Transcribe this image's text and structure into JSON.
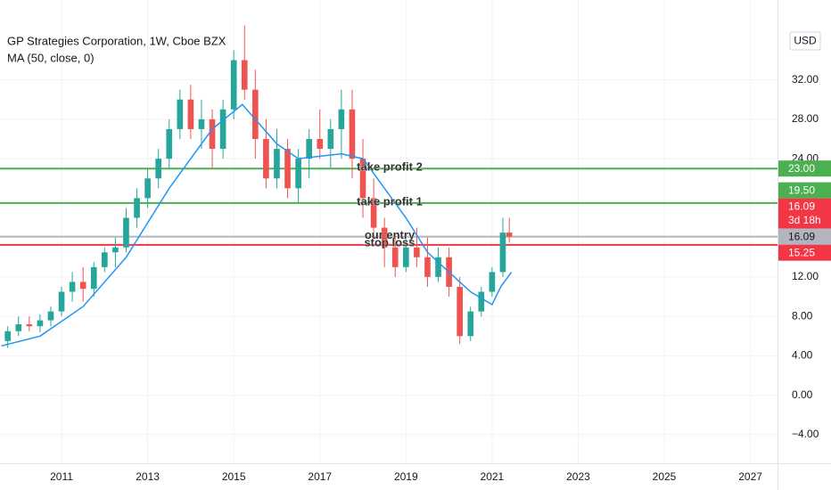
{
  "chart_data": {
    "type": "candlestick",
    "title": "GP Strategies Corporation, 1W, Cboe BZX",
    "indicator": "MA (50, close, 0)",
    "currency": "USD",
    "up_color": "#26a69a",
    "down_color": "#ef5350",
    "grid": true,
    "xlim": [
      2009.57,
      2027.63
    ],
    "xticks": [
      2011,
      2013,
      2015,
      2017,
      2019,
      2021,
      2023,
      2025,
      2027
    ],
    "ylim": [
      -6.9,
      40.1
    ],
    "yticks": [
      {
        "value": -4,
        "label": "−4.00"
      },
      {
        "value": 0,
        "label": "0.00"
      },
      {
        "value": 4,
        "label": "4.00"
      },
      {
        "value": 8,
        "label": "8.00"
      },
      {
        "value": 12,
        "label": "12.00"
      },
      {
        "value": 24,
        "label": "24.00"
      },
      {
        "value": 28,
        "label": "28.00"
      },
      {
        "value": 32,
        "label": "32.00"
      }
    ],
    "x": [
      2009.75,
      2010,
      2010.25,
      2010.5,
      2010.75,
      2011,
      2011.25,
      2011.5,
      2011.75,
      2012,
      2012.25,
      2012.5,
      2012.75,
      2013,
      2013.25,
      2013.5,
      2013.75,
      2014,
      2014.25,
      2014.5,
      2014.75,
      2015,
      2015.25,
      2015.5,
      2015.75,
      2016,
      2016.25,
      2016.5,
      2016.75,
      2017,
      2017.25,
      2017.5,
      2017.75,
      2018,
      2018.25,
      2018.5,
      2018.75,
      2019,
      2019.25,
      2019.5,
      2019.75,
      2020,
      2020.25,
      2020.5,
      2020.75,
      2021,
      2021.25,
      2021.4
    ],
    "open": [
      5.5,
      6.5,
      7.2,
      7,
      7.6,
      8.5,
      10.5,
      11.5,
      10.8,
      13,
      14.5,
      15,
      18,
      20,
      22,
      24,
      27,
      30,
      27,
      28,
      25,
      29,
      34,
      31,
      26,
      22,
      25,
      21,
      24,
      26,
      25,
      27,
      29,
      24,
      20,
      17,
      15,
      13,
      15,
      14,
      12,
      14,
      11,
      6,
      8.5,
      10.5,
      12.5,
      16.5
    ],
    "high": [
      7,
      8,
      8,
      8.2,
      9,
      11,
      12.5,
      13,
      13.5,
      15,
      16,
      19,
      21,
      23,
      25,
      28,
      31,
      31.5,
      30,
      29,
      30,
      35,
      37.5,
      33,
      28,
      27,
      26,
      25,
      27,
      29,
      28,
      31,
      31,
      26,
      22,
      18,
      16.5,
      16,
      17,
      16,
      15,
      15,
      12,
      9,
      11,
      13,
      18,
      18
    ],
    "low": [
      4.8,
      6,
      6.5,
      6.4,
      7,
      8,
      9.5,
      9.5,
      10,
      12.5,
      13,
      14.5,
      17,
      19,
      21,
      23,
      26,
      26,
      25,
      23,
      24,
      28,
      30,
      24,
      21,
      21,
      20,
      19.5,
      22,
      24,
      23,
      24,
      22,
      18,
      16,
      13,
      12,
      12.5,
      13,
      11,
      11.5,
      10,
      5.2,
      5.5,
      8,
      10,
      12,
      15.5
    ],
    "close": [
      6.5,
      7.2,
      7,
      7.6,
      8.5,
      10.5,
      11.5,
      10.8,
      13,
      14.5,
      15,
      18,
      20,
      22,
      24,
      27,
      30,
      27,
      28,
      25,
      29,
      34,
      31,
      26,
      22,
      25,
      21,
      24,
      26,
      25,
      27,
      29,
      24,
      20,
      17,
      15,
      13,
      15,
      14,
      12,
      14,
      11,
      6,
      8.5,
      10.5,
      12.5,
      16.5,
      16.09
    ],
    "ma": {
      "color": "#2196f3",
      "x": [
        2009.6,
        2010.5,
        2011.5,
        2012.5,
        2013.5,
        2014.5,
        2015.2,
        2015.5,
        2016,
        2016.5,
        2017.5,
        2018,
        2018.5,
        2019,
        2019.5,
        2020,
        2020.5,
        2021,
        2021.2,
        2021.45
      ],
      "values": [
        5,
        6,
        9,
        14,
        21,
        27,
        29.5,
        28,
        25.5,
        24,
        24.5,
        24,
        21,
        18,
        14.5,
        12.5,
        10.5,
        9.2,
        11,
        12.5
      ]
    },
    "hlines": [
      {
        "value": 23,
        "label": "take profit 2",
        "color": "#4caf50"
      },
      {
        "value": 19.5,
        "label": "take profit 1",
        "color": "#4caf50"
      },
      {
        "value": 16.09,
        "label": "our entry",
        "color": "#b2b5be"
      },
      {
        "value": 15.25,
        "label": "stop loss",
        "color": "#f23645"
      }
    ],
    "price_tags": [
      {
        "value": 23,
        "label": "23.00",
        "color": "#4caf50"
      },
      {
        "value": 19.5,
        "label": "19.50",
        "color": "#4caf50"
      },
      {
        "value": 16.09,
        "label": "16.09",
        "sub": "3d 18h",
        "color": "#f23645"
      },
      {
        "value": 16.09,
        "label": "16.09",
        "color": "#b2b5be"
      },
      {
        "value": 15.25,
        "label": "15.25",
        "color": "#f23645"
      }
    ]
  }
}
